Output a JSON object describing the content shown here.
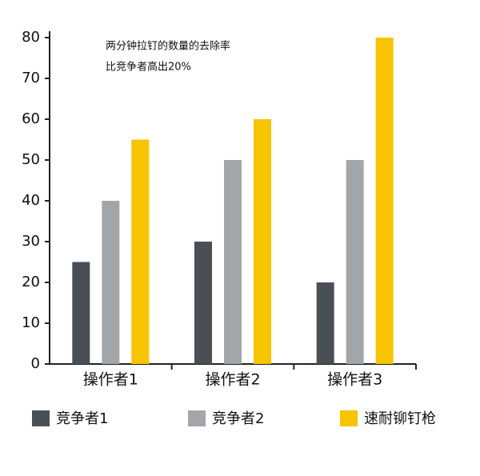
{
  "chart_data": {
    "type": "bar",
    "annotation": [
      "两分钟拉钉的数量的去除率",
      "比竞争者高出20%"
    ],
    "categories": [
      "操作者1",
      "操作者2",
      "操作者3"
    ],
    "series": [
      {
        "name": "竞争者1",
        "color": "#4a4f56",
        "values": [
          25,
          30,
          20
        ]
      },
      {
        "name": "竞争者2",
        "color": "#a3a6a9",
        "values": [
          40,
          50,
          50
        ]
      },
      {
        "name": "速耐铆钉枪",
        "color": "#f6c400",
        "values": [
          55,
          60,
          80
        ]
      }
    ],
    "ylim": [
      0,
      80
    ],
    "yticks": [
      0,
      10,
      20,
      30,
      40,
      50,
      60,
      70,
      80
    ]
  }
}
